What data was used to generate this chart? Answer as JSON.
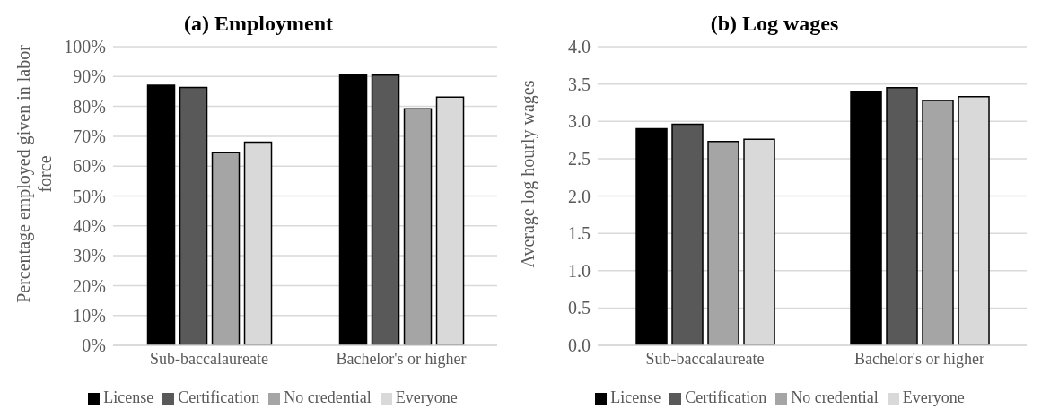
{
  "chart_data": [
    {
      "type": "bar",
      "title": "(a) Employment",
      "ylabel": "Percentage employed given in labor force",
      "categories": [
        "Sub-baccalaureate",
        "Bachelor's or higher"
      ],
      "series": [
        {
          "name": "License",
          "color": "#000000",
          "values": [
            87.1,
            90.7
          ]
        },
        {
          "name": "Certification",
          "color": "#595959",
          "values": [
            86.3,
            90.5
          ]
        },
        {
          "name": "No credential",
          "color": "#a5a5a5",
          "values": [
            64.5,
            79.2
          ]
        },
        {
          "name": "Everyone",
          "color": "#d9d9d9",
          "values": [
            68.0,
            83.1
          ]
        }
      ],
      "ylim": [
        0,
        100
      ],
      "yticks": [
        {
          "value": 0,
          "label": "0%"
        },
        {
          "value": 10,
          "label": "10%"
        },
        {
          "value": 20,
          "label": "20%"
        },
        {
          "value": 30,
          "label": "30%"
        },
        {
          "value": 40,
          "label": "40%"
        },
        {
          "value": 50,
          "label": "50%"
        },
        {
          "value": 60,
          "label": "60%"
        },
        {
          "value": 70,
          "label": "70%"
        },
        {
          "value": 80,
          "label": "80%"
        },
        {
          "value": 90,
          "label": "90%"
        },
        {
          "value": 100,
          "label": "100%"
        }
      ],
      "grid": "y",
      "legend": "bottom"
    },
    {
      "type": "bar",
      "title": "(b) Log wages",
      "ylabel": "Average log hourly wages",
      "categories": [
        "Sub-baccalaureate",
        "Bachelor's or higher"
      ],
      "series": [
        {
          "name": "License",
          "color": "#000000",
          "values": [
            2.9,
            3.4
          ]
        },
        {
          "name": "Certification",
          "color": "#595959",
          "values": [
            2.96,
            3.45
          ]
        },
        {
          "name": "No credential",
          "color": "#a5a5a5",
          "values": [
            2.73,
            3.28
          ]
        },
        {
          "name": "Everyone",
          "color": "#d9d9d9",
          "values": [
            2.76,
            3.33
          ]
        }
      ],
      "ylim": [
        0,
        4
      ],
      "yticks": [
        {
          "value": 0,
          "label": "0.0"
        },
        0.5,
        {
          "value": 1,
          "label": "1.0"
        },
        1.5,
        {
          "value": 2,
          "label": "2.0"
        },
        2.5,
        {
          "value": 3,
          "label": "3.0"
        },
        3.5,
        {
          "value": 4,
          "label": "4.0"
        }
      ],
      "grid": "y",
      "legend": "bottom"
    }
  ]
}
